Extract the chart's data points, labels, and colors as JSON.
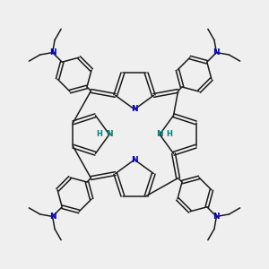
{
  "background_color": "#efefef",
  "bond_color": "#1a1a1a",
  "N_color": "#0000cc",
  "NH_color": "#008080",
  "lw": 1.1,
  "dbl_off": 0.07,
  "figsize": [
    3.0,
    3.0
  ],
  "dpi": 100,
  "xlim": [
    -5.5,
    5.5
  ],
  "ylim": [
    -5.5,
    5.5
  ]
}
